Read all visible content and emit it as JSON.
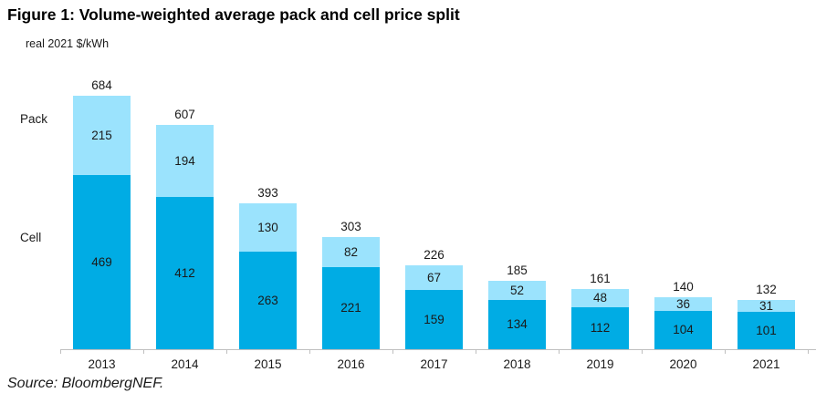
{
  "title": "Figure 1: Volume-weighted average pack and cell price split",
  "units_label": "real 2021 $/kWh",
  "legend": {
    "pack": "Pack",
    "cell": "Cell"
  },
  "source": "Source: BloombergNEF.",
  "colors": {
    "cell": "#00ace4",
    "pack": "#9be3fd",
    "axis": "#bfbfbf",
    "text": "#1a1a1a"
  },
  "chart_data": {
    "type": "bar",
    "stacked": true,
    "title": "Figure 1: Volume-weighted average pack and cell price split",
    "ylabel": "real 2021 $/kWh",
    "categories": [
      "2013",
      "2014",
      "2015",
      "2016",
      "2017",
      "2018",
      "2019",
      "2020",
      "2021"
    ],
    "series": [
      {
        "name": "Cell",
        "values": [
          469,
          412,
          263,
          221,
          159,
          134,
          112,
          104,
          101
        ]
      },
      {
        "name": "Pack",
        "values": [
          215,
          194,
          130,
          82,
          67,
          52,
          48,
          36,
          31
        ]
      }
    ],
    "totals": [
      684,
      607,
      393,
      303,
      226,
      185,
      161,
      140,
      132
    ],
    "ylim": [
      0,
      700
    ],
    "grid": false,
    "legend_position": "left",
    "value_labels": "inside-segments-and-total-above"
  }
}
